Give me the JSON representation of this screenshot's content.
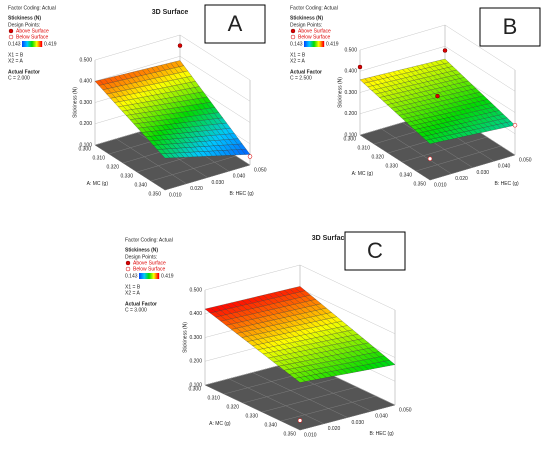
{
  "chart_data": [
    {
      "type": "surface",
      "title": "3D Surface",
      "panel_label": "A",
      "factor_coding": "Factor Coding: Actual",
      "response": "Stickiness (N)",
      "design_points_label": "Design Points:",
      "above_label": "Above Surface",
      "below_label": "Below Surface",
      "colorbar": [
        0.143,
        0.419
      ],
      "coding": [
        "X1 = B",
        "X2 = A"
      ],
      "actual_factor_label": "Actual Factor",
      "actual_factor": "C = 2.000",
      "xlabel": "B: HEC (g)",
      "ylabel": "A: MC (g)",
      "zlabel": "Stickiness (N)",
      "xlim": [
        0.01,
        0.05
      ],
      "ylim": [
        0.3,
        0.35
      ],
      "zlim": [
        0.1,
        0.5
      ],
      "xticks": [
        {
          "value": 0.01,
          "label": "0.010"
        },
        {
          "value": 0.02,
          "label": "0.020"
        },
        {
          "value": 0.03,
          "label": "0.030"
        },
        {
          "value": 0.04,
          "label": "0.040"
        },
        {
          "value": 0.05,
          "label": "0.050"
        }
      ],
      "yticks": [
        {
          "value": 0.3,
          "label": "0.300"
        },
        {
          "value": 0.31,
          "label": "0.310"
        },
        {
          "value": 0.32,
          "label": "0.320"
        },
        {
          "value": 0.33,
          "label": "0.330"
        },
        {
          "value": 0.34,
          "label": "0.340"
        },
        {
          "value": 0.35,
          "label": "0.350"
        }
      ],
      "zticks": [
        {
          "value": 0.1,
          "label": "0.100"
        },
        {
          "value": 0.2,
          "label": "0.200"
        },
        {
          "value": 0.3,
          "label": "0.300"
        },
        {
          "value": 0.4,
          "label": "0.400"
        },
        {
          "value": 0.5,
          "label": "0.500"
        }
      ],
      "z": [
        [
          0.4,
          0.38
        ],
        [
          0.25,
          0.15
        ]
      ],
      "points": {
        "x": [
          0.05,
          0.05
        ],
        "y": [
          0.3,
          0.35
        ],
        "z": [
          0.45,
          0.14
        ],
        "above": [
          true,
          false
        ]
      }
    },
    {
      "type": "surface",
      "panel_label": "B",
      "factor_coding": "Factor Coding: Actual",
      "response": "Stickiness (N)",
      "design_points_label": "Design Points:",
      "above_label": "Above Surface",
      "below_label": "Below Surface",
      "colorbar": [
        0.143,
        0.419
      ],
      "coding": [
        "X1 = B",
        "X2 = A"
      ],
      "actual_factor_label": "Actual Factor",
      "actual_factor": "C = 2.500",
      "xlabel": "B: HEC (g)",
      "ylabel": "A: MC (g)",
      "zlabel": "Stickiness (N)",
      "xlim": [
        0.01,
        0.05
      ],
      "ylim": [
        0.3,
        0.35
      ],
      "zlim": [
        0.1,
        0.5
      ],
      "xticks": [
        {
          "value": 0.01,
          "label": "0.010"
        },
        {
          "value": 0.02,
          "label": "0.020"
        },
        {
          "value": 0.03,
          "label": "0.030"
        },
        {
          "value": 0.04,
          "label": "0.040"
        },
        {
          "value": 0.05,
          "label": "0.050"
        }
      ],
      "yticks": [
        {
          "value": 0.3,
          "label": "0.300"
        },
        {
          "value": 0.31,
          "label": "0.310"
        },
        {
          "value": 0.32,
          "label": "0.320"
        },
        {
          "value": 0.33,
          "label": "0.330"
        },
        {
          "value": 0.34,
          "label": "0.340"
        },
        {
          "value": 0.35,
          "label": "0.350"
        }
      ],
      "zticks": [
        {
          "value": 0.1,
          "label": "0.100"
        },
        {
          "value": 0.2,
          "label": "0.200"
        },
        {
          "value": 0.3,
          "label": "0.300"
        },
        {
          "value": 0.4,
          "label": "0.400"
        },
        {
          "value": 0.5,
          "label": "0.500"
        }
      ],
      "z": [
        [
          0.36,
          0.34
        ],
        [
          0.27,
          0.24
        ]
      ],
      "points": {
        "x": [
          0.01,
          0.03,
          0.05,
          0.01,
          0.05
        ],
        "y": [
          0.3,
          0.325,
          0.3,
          0.35,
          0.35
        ],
        "z": [
          0.42,
          0.33,
          0.38,
          0.2,
          0.24
        ],
        "above": [
          true,
          true,
          true,
          false,
          false
        ]
      }
    },
    {
      "type": "surface",
      "title": "3D Surface",
      "panel_label": "C",
      "factor_coding": "Factor Coding: Actual",
      "response": "Stickiness (N)",
      "design_points_label": "Design Points:",
      "above_label": "Above Surface",
      "below_label": "Below Surface",
      "colorbar": [
        0.143,
        0.419
      ],
      "coding": [
        "X1 = B",
        "X2 = A"
      ],
      "actual_factor_label": "Actual Factor",
      "actual_factor": "C = 3.000",
      "xlabel": "B: HEC (g)",
      "ylabel": "A: MC (g)",
      "zlabel": "Stickiness (N)",
      "xlim": [
        0.01,
        0.05
      ],
      "ylim": [
        0.3,
        0.35
      ],
      "zlim": [
        0.1,
        0.5
      ],
      "xticks": [
        {
          "value": 0.01,
          "label": "0.010"
        },
        {
          "value": 0.02,
          "label": "0.020"
        },
        {
          "value": 0.03,
          "label": "0.030"
        },
        {
          "value": 0.04,
          "label": "0.040"
        },
        {
          "value": 0.05,
          "label": "0.050"
        }
      ],
      "yticks": [
        {
          "value": 0.3,
          "label": "0.300"
        },
        {
          "value": 0.31,
          "label": "0.310"
        },
        {
          "value": 0.32,
          "label": "0.320"
        },
        {
          "value": 0.33,
          "label": "0.330"
        },
        {
          "value": 0.34,
          "label": "0.340"
        },
        {
          "value": 0.35,
          "label": "0.350"
        }
      ],
      "zticks": [
        {
          "value": 0.1,
          "label": "0.100"
        },
        {
          "value": 0.2,
          "label": "0.200"
        },
        {
          "value": 0.3,
          "label": "0.300"
        },
        {
          "value": 0.4,
          "label": "0.400"
        },
        {
          "value": 0.5,
          "label": "0.500"
        }
      ],
      "z": [
        [
          0.42,
          0.41
        ],
        [
          0.3,
          0.27
        ]
      ],
      "points": {
        "x": [
          0.01
        ],
        "y": [
          0.35
        ],
        "z": [
          0.14
        ],
        "above": [
          false
        ]
      }
    }
  ]
}
